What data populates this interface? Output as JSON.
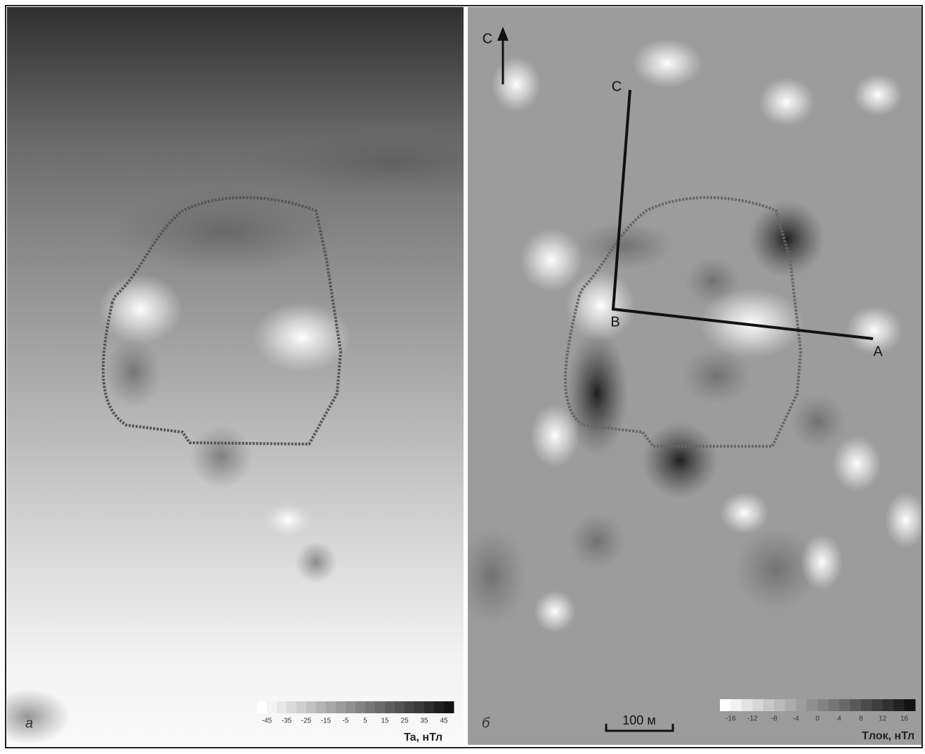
{
  "panels": [
    {
      "label": "а",
      "legend": {
        "ticks": [
          -45,
          -35,
          -25,
          -15,
          -5,
          5,
          15,
          25,
          35,
          45
        ],
        "title": "Ta, нТл"
      }
    },
    {
      "label": "б",
      "legend": {
        "ticks": [
          -16,
          -12,
          -8,
          -4,
          0,
          4,
          8,
          12,
          16
        ],
        "title": "Tлок, нТл"
      },
      "north_label": "С",
      "scale_label": "100 м",
      "profile_points": [
        "C",
        "B",
        "A"
      ]
    }
  ]
}
